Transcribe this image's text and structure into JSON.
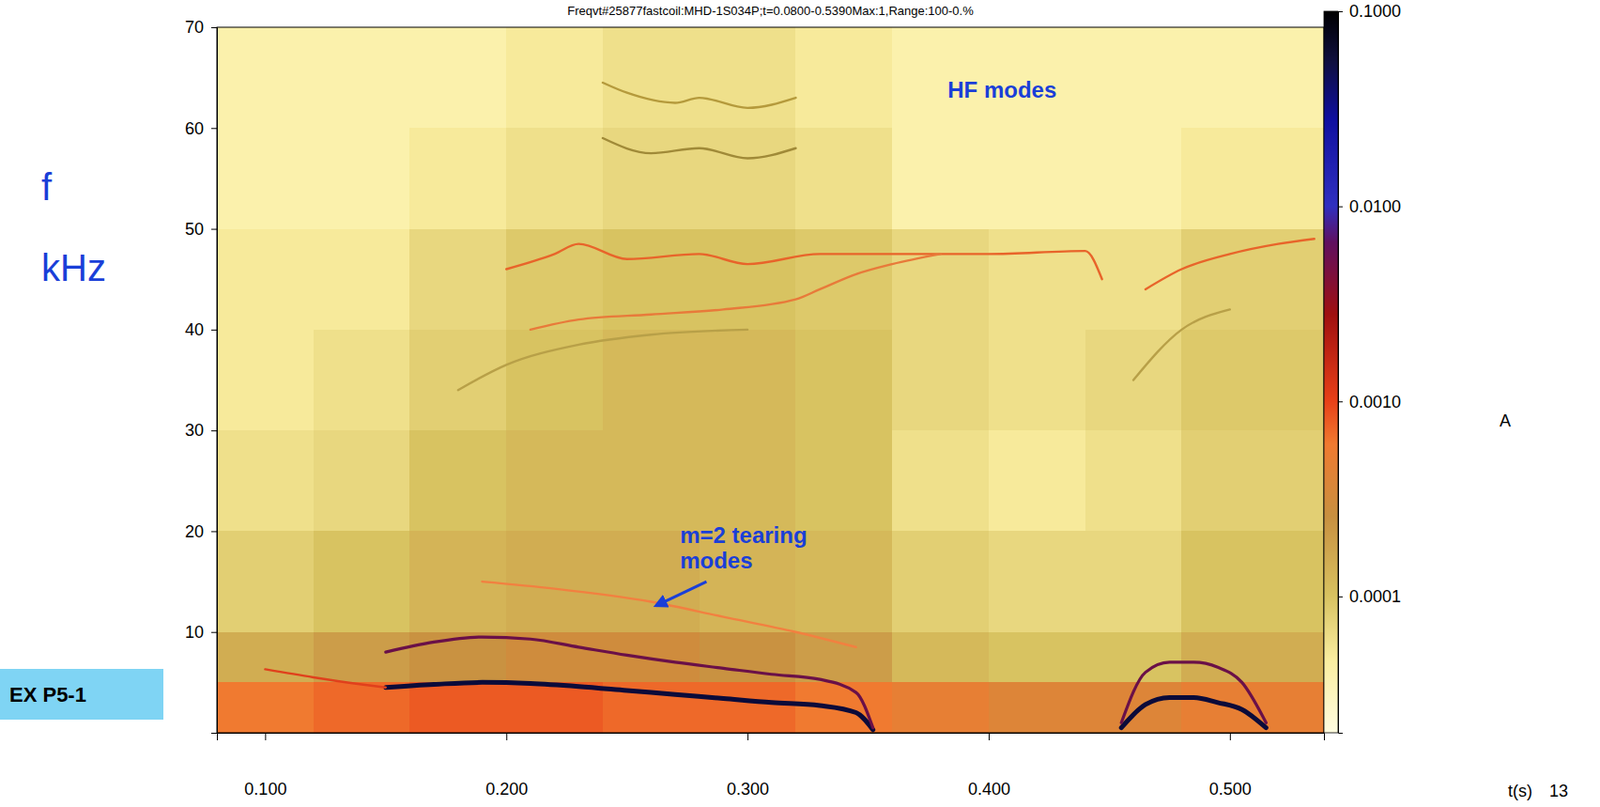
{
  "chart_data": {
    "type": "spectrogram",
    "title": "Freqvt#25877fastcoil:MHD-1S034P;t=0.0800-0.5390Max:1,Range:100-0.%",
    "xlabel": "t(s)",
    "ylabel": "f kHz",
    "xlim": [
      0.08,
      0.539
    ],
    "ylim": [
      0,
      70
    ],
    "xticks": [
      {
        "value": 0.1,
        "label": "0.100"
      },
      {
        "value": 0.2,
        "label": "0.200"
      },
      {
        "value": 0.3,
        "label": "0.300"
      },
      {
        "value": 0.4,
        "label": "0.400"
      },
      {
        "value": 0.5,
        "label": "0.500"
      }
    ],
    "yticks": [
      10,
      20,
      30,
      40,
      50,
      60,
      70
    ],
    "grid": false,
    "colorbar": {
      "label": "A",
      "log": true,
      "range": [
        2e-05,
        0.1
      ],
      "ticks": [
        {
          "value": 0.1,
          "label": "0.1000"
        },
        {
          "value": 0.01,
          "label": "0.0100"
        },
        {
          "value": 0.001,
          "label": "0.0010"
        },
        {
          "value": 0.0001,
          "label": "0.0001"
        }
      ]
    },
    "heatmap": {
      "x_edges": [
        0.08,
        0.12,
        0.16,
        0.2,
        0.24,
        0.28,
        0.32,
        0.36,
        0.4,
        0.44,
        0.48,
        0.52,
        0.539
      ],
      "y_edges": [
        0,
        5,
        10,
        20,
        30,
        40,
        50,
        60,
        70
      ],
      "values": [
        [
          0.0006,
          0.0007,
          0.0008,
          0.0008,
          0.0007,
          0.0007,
          0.0006,
          0.0005,
          0.0004,
          0.0004,
          0.0005,
          0.0005
        ],
        [
          0.00015,
          0.0002,
          0.00025,
          0.0003,
          0.0003,
          0.00025,
          0.0002,
          0.00012,
          0.0001,
          0.0001,
          0.00015,
          0.00015
        ],
        [
          8e-05,
          0.0001,
          0.00013,
          0.00015,
          0.00015,
          0.00013,
          0.00012,
          8e-05,
          7e-05,
          7e-05,
          0.0001,
          0.0001
        ],
        [
          6e-05,
          7e-05,
          0.0001,
          0.00012,
          0.00012,
          0.00012,
          0.0001,
          6e-05,
          5e-05,
          6e-05,
          8e-05,
          8e-05
        ],
        [
          5e-05,
          6e-05,
          8e-05,
          0.0001,
          0.00012,
          0.00012,
          0.0001,
          7e-05,
          6e-05,
          7e-05,
          9e-05,
          9e-05
        ],
        [
          5e-05,
          5e-05,
          7e-05,
          9e-05,
          0.0001,
          0.0001,
          9e-05,
          7e-05,
          6e-05,
          6e-05,
          8e-05,
          8e-05
        ],
        [
          4e-05,
          4e-05,
          5e-05,
          6e-05,
          7e-05,
          7e-05,
          6e-05,
          4e-05,
          4e-05,
          4e-05,
          5e-05,
          5e-05
        ],
        [
          4e-05,
          4e-05,
          4e-05,
          5e-05,
          6e-05,
          6e-05,
          5e-05,
          4e-05,
          4e-05,
          4e-05,
          4e-05,
          4e-05
        ]
      ]
    },
    "series": [
      {
        "color": "#0b0b3a",
        "x": [
          0.15,
          0.17,
          0.19,
          0.21,
          0.23,
          0.25,
          0.27,
          0.29,
          0.31,
          0.33,
          0.345,
          0.352,
          0.4,
          0.455,
          0.465,
          0.475,
          0.485,
          0.495,
          0.505,
          0.515
        ],
        "values": [
          4.5,
          4.8,
          5.0,
          4.9,
          4.6,
          4.2,
          3.8,
          3.4,
          3.0,
          2.7,
          2.0,
          0.3,
          null,
          0.5,
          2.8,
          3.5,
          3.5,
          3.0,
          2.3,
          0.5
        ]
      },
      {
        "color": "#e0401c",
        "x": [
          0.1,
          0.12,
          0.14,
          0.15
        ],
        "values": [
          6.3,
          5.5,
          4.8,
          4.5
        ]
      },
      {
        "color": "#6a1048",
        "x": [
          0.15,
          0.17,
          0.19,
          0.21,
          0.23,
          0.25,
          0.27,
          0.29,
          0.31,
          0.33,
          0.345,
          0.352,
          0.4,
          0.455,
          0.465,
          0.475,
          0.485,
          0.495,
          0.505,
          0.515
        ],
        "values": [
          8.0,
          9.0,
          9.5,
          9.3,
          8.5,
          7.7,
          7.0,
          6.4,
          5.8,
          5.3,
          4.0,
          0.5,
          null,
          1.0,
          6.0,
          7.0,
          7.0,
          6.5,
          5.0,
          1.0
        ]
      },
      {
        "color": "#f28040",
        "x": [
          0.19,
          0.22,
          0.26,
          0.29,
          0.32,
          0.345
        ],
        "values": [
          15,
          14.3,
          13,
          11.5,
          10,
          8.5
        ]
      },
      {
        "color": "#b59a3c",
        "x": [
          0.24,
          0.25,
          0.27,
          0.28,
          0.3,
          0.32
        ],
        "values": [
          64.5,
          63.5,
          62.5,
          63,
          62,
          63
        ]
      },
      {
        "color": "#a08a38",
        "x": [
          0.24,
          0.26,
          0.28,
          0.3,
          0.32
        ],
        "values": [
          59,
          57.5,
          58,
          57,
          58
        ]
      },
      {
        "color": "#e8642a",
        "x": [
          0.2,
          0.22,
          0.23,
          0.25,
          0.28,
          0.3,
          0.33,
          0.36,
          0.4,
          0.44,
          0.447,
          0.455,
          0.465,
          0.48,
          0.5,
          0.52,
          0.535
        ],
        "values": [
          46,
          47.5,
          48.5,
          47,
          47.5,
          46.5,
          47.5,
          47.5,
          47.5,
          47.8,
          45,
          null,
          44,
          46,
          47.5,
          48.5,
          49
        ]
      },
      {
        "color": "#e87a3a",
        "x": [
          0.21,
          0.23,
          0.26,
          0.29,
          0.32,
          0.33,
          0.345,
          0.36,
          0.38
        ],
        "values": [
          40,
          41,
          41.5,
          42,
          43,
          44,
          45.5,
          46.5,
          47.5
        ]
      },
      {
        "color": "#b8a048",
        "x": [
          0.18,
          0.2,
          0.23,
          0.26,
          0.3,
          0.4,
          0.46,
          0.48,
          0.5
        ],
        "values": [
          34,
          36.5,
          38.5,
          39.5,
          40,
          null,
          35,
          40,
          42
        ]
      }
    ],
    "annotations": [
      {
        "text": "HF modes"
      },
      {
        "text": "m=2 tearing modes"
      }
    ],
    "footer": "EX P5-1",
    "page": "13"
  }
}
